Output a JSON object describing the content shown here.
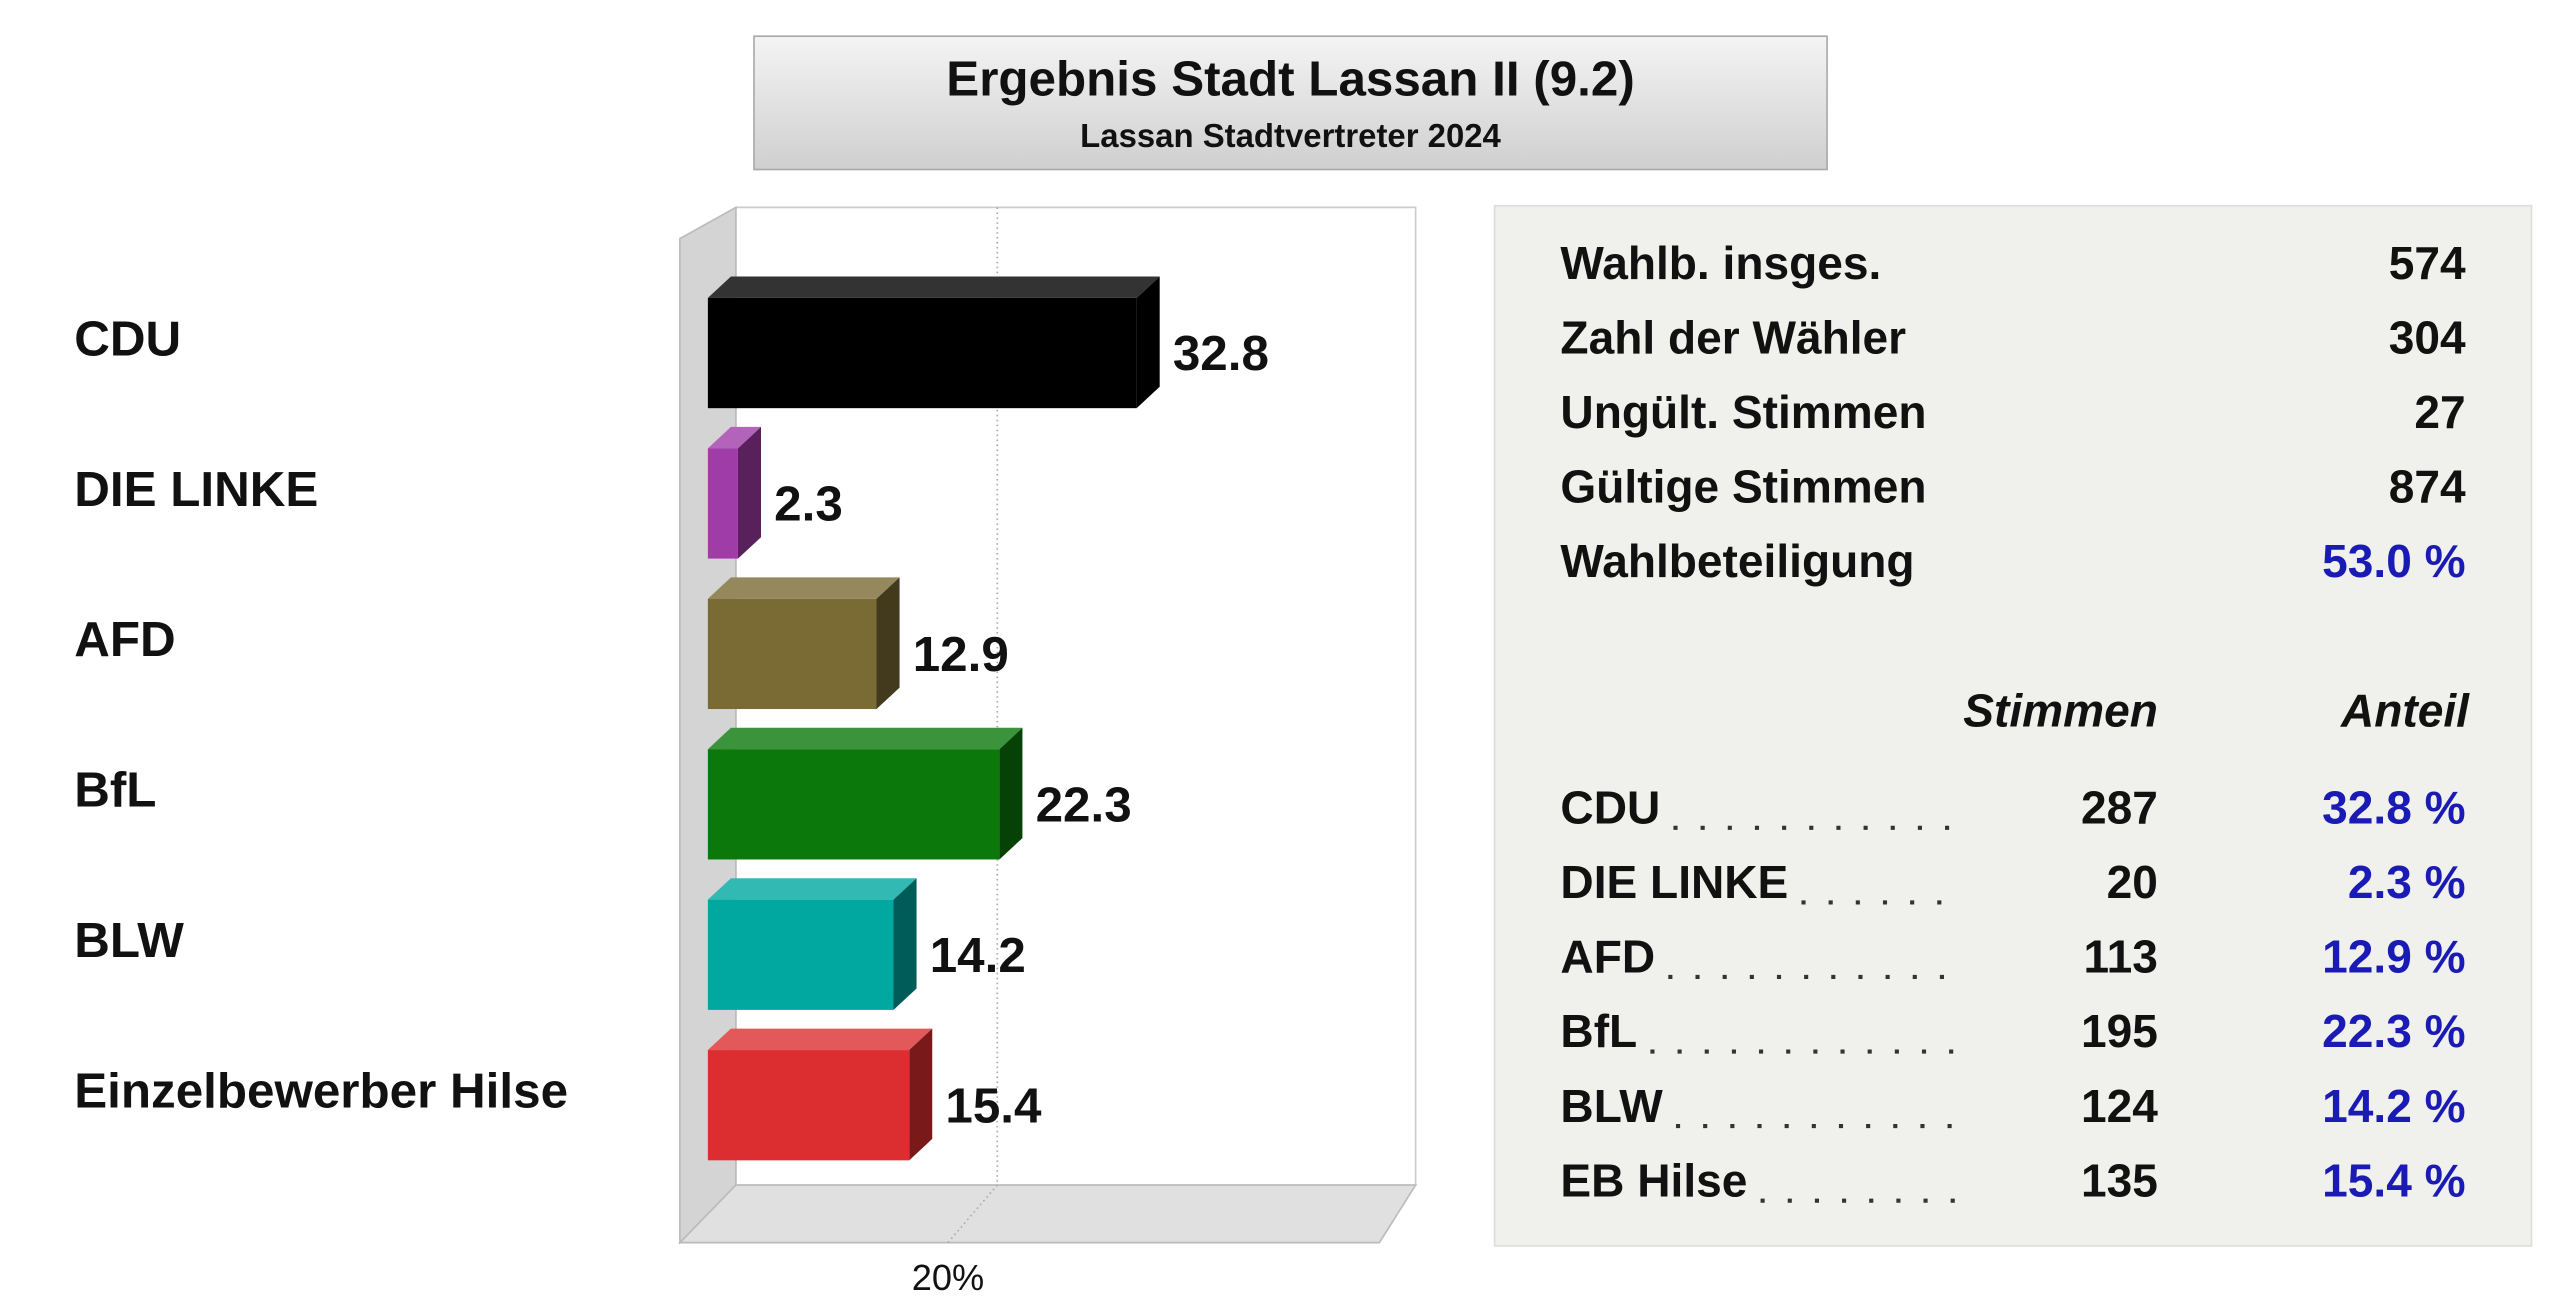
{
  "chart_data": {
    "type": "bar3d",
    "title": "Ergebnis Stadt Lassan II (9.2)",
    "subtitle": "Lassan Stadtvertreter 2024",
    "categories": [
      "CDU",
      "DIE LINKE",
      "AFD",
      "BfL",
      "BLW",
      "Einzelbewerber Hilse"
    ],
    "values": [
      32.8,
      2.3,
      12.9,
      22.3,
      14.2,
      15.4
    ],
    "colors": [
      "#000000",
      "#a03ca8",
      "#7a6a34",
      "#0a780a",
      "#00a8a0",
      "#dc2e30"
    ],
    "xlim": [
      0,
      52
    ],
    "xticks": [
      {
        "value": 20,
        "label": "20%"
      }
    ],
    "grid": true
  },
  "summary": {
    "rows": [
      [
        "Wahlb. insges.",
        "574"
      ],
      [
        "Zahl der Wähler",
        "304"
      ],
      [
        "Ungült. Stimmen",
        "27"
      ],
      [
        "Gültige Stimmen",
        "874"
      ],
      [
        "Wahlbeteiligung",
        "53.0 %"
      ]
    ]
  },
  "results": {
    "headers": [
      "Stimmen",
      "Anteil"
    ],
    "rows": [
      [
        "CDU",
        "287",
        "32.8 %"
      ],
      [
        "DIE LINKE",
        "20",
        "2.3 %"
      ],
      [
        "AFD",
        "113",
        "12.9 %"
      ],
      [
        "BfL",
        "195",
        "22.3 %"
      ],
      [
        "BLW",
        "124",
        "14.2 %"
      ],
      [
        "EB Hilse",
        "135",
        "15.4 %"
      ]
    ]
  }
}
